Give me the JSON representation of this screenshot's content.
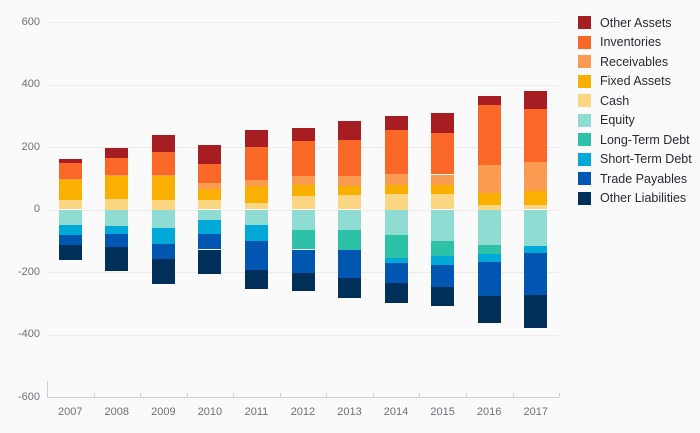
{
  "chart_data": {
    "type": "bar",
    "subtype": "diverging-stacked-bar",
    "title": "",
    "categories": [
      "2007",
      "2008",
      "2009",
      "2010",
      "2011",
      "2012",
      "2013",
      "2014",
      "2015",
      "2016",
      "2017"
    ],
    "y_axis": {
      "tick_labels": [
        "600",
        "400",
        "200",
        "0",
        "-200",
        "-400",
        "-600"
      ],
      "tick_values": [
        600,
        400,
        200,
        0,
        -200,
        -400,
        -600
      ],
      "min": -600,
      "max": 600
    },
    "grid": true,
    "legend_position": "top-right",
    "positive_stack_order_from_zero": [
      "Cash",
      "Fixed Assets",
      "Receivables",
      "Inventories",
      "Other Assets"
    ],
    "negative_stack_order_from_zero": [
      "Equity",
      "Long-Term Debt",
      "Short-Term Debt",
      "Trade Payables",
      "Other Liabilities"
    ],
    "series": [
      {
        "name": "Other Assets",
        "side": "positive",
        "color": "#a61e22",
        "values": [
          12,
          32,
          57,
          60,
          54,
          42,
          60,
          45,
          65,
          28,
          58
        ]
      },
      {
        "name": "Inventories",
        "side": "positive",
        "color": "#f96826",
        "values": [
          51,
          54,
          73,
          61,
          106,
          114,
          116,
          142,
          133,
          190,
          170
        ]
      },
      {
        "name": "Receivables",
        "side": "positive",
        "color": "#fb9a51",
        "values": [
          6,
          4,
          3,
          19,
          19,
          28,
          31,
          34,
          35,
          90,
          93
        ]
      },
      {
        "name": "Fixed Assets",
        "side": "positive",
        "color": "#f9b000",
        "values": [
          64,
          74,
          77,
          36,
          55,
          35,
          29,
          29,
          26,
          38,
          44
        ]
      },
      {
        "name": "Cash",
        "side": "positive",
        "color": "#fbd783",
        "values": [
          29,
          34,
          30,
          29,
          21,
          43,
          47,
          50,
          51,
          16,
          15
        ]
      },
      {
        "name": "Equity",
        "side": "negative",
        "color": "#8edcd2",
        "values": [
          48,
          52,
          58,
          32,
          48,
          67,
          64,
          80,
          100,
          112,
          118
        ]
      },
      {
        "name": "Long-Term Debt",
        "side": "negative",
        "color": "#2dc2a7",
        "values": [
          0,
          0,
          0,
          0,
          0,
          61,
          64,
          74,
          48,
          29,
          0
        ]
      },
      {
        "name": "Short-Term Debt",
        "side": "negative",
        "color": "#00a9d6",
        "values": [
          33,
          26,
          51,
          46,
          54,
          0,
          0,
          18,
          29,
          26,
          20
        ]
      },
      {
        "name": "Trade Payables",
        "side": "negative",
        "color": "#0056b0",
        "values": [
          34,
          42,
          48,
          50,
          90,
          75,
          92,
          63,
          70,
          110,
          135
        ]
      },
      {
        "name": "Other Liabilities",
        "side": "negative",
        "color": "#00305a",
        "values": [
          47,
          78,
          83,
          77,
          63,
          59,
          63,
          65,
          63,
          85,
          107
        ]
      }
    ],
    "totals_positive": [
      162,
      198,
      240,
      205,
      255,
      262,
      283,
      300,
      310,
      362,
      380
    ],
    "totals_negative": [
      -162,
      -198,
      -240,
      -205,
      -255,
      -262,
      -283,
      -300,
      -310,
      -362,
      -380
    ]
  },
  "colors": {
    "background": "#fafafa",
    "gridline": "#ececec",
    "axis_line": "#c9d2dc",
    "axis_text": "#6b7177",
    "legend_text": "#272b31"
  },
  "legend": {
    "items": [
      {
        "label": "Other Assets",
        "color": "#a61e22"
      },
      {
        "label": "Inventories",
        "color": "#f96826"
      },
      {
        "label": "Receivables",
        "color": "#fb9a51"
      },
      {
        "label": "Fixed Assets",
        "color": "#f9b000"
      },
      {
        "label": "Cash",
        "color": "#fbd783"
      },
      {
        "label": "Equity",
        "color": "#8edcd2"
      },
      {
        "label": "Long-Term Debt",
        "color": "#2dc2a7"
      },
      {
        "label": "Short-Term Debt",
        "color": "#00a9d6"
      },
      {
        "label": "Trade Payables",
        "color": "#0056b0"
      },
      {
        "label": "Other Liabilities",
        "color": "#00305a"
      }
    ]
  }
}
